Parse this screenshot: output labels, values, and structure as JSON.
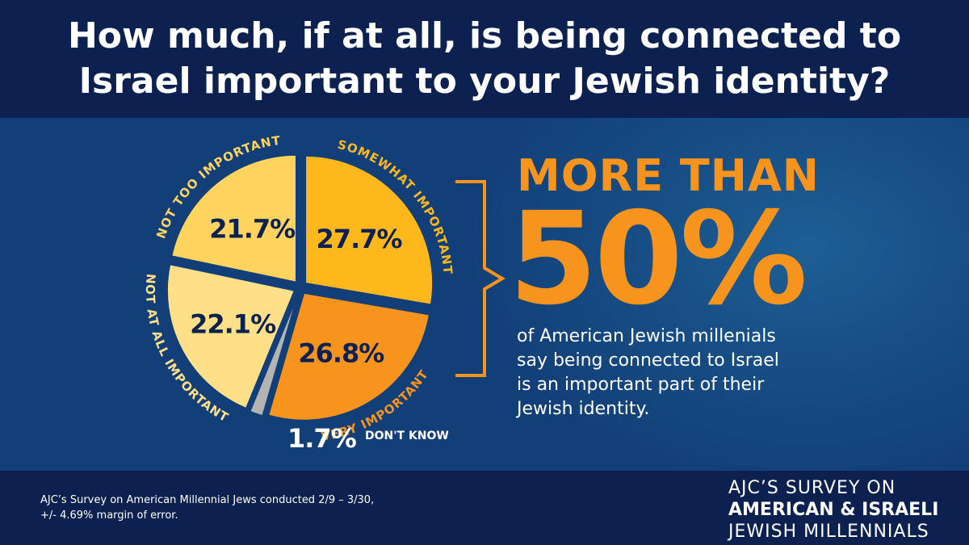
{
  "header": {
    "title_line1": "How much, if at all, is being connected to",
    "title_line2": "Israel important to your Jewish identity?"
  },
  "chart_data": {
    "type": "pie",
    "title": "How much, if at all, is being connected to Israel important to your Jewish identity?",
    "slices": [
      {
        "label": "SOMEWHAT IMPORTANT",
        "value": 27.7,
        "value_label": "27.7%",
        "color": "#ffb81c"
      },
      {
        "label": "VERY IMPORTANT",
        "value": 26.8,
        "value_label": "26.8%",
        "color": "#f7941d"
      },
      {
        "label": "DON'T KNOW",
        "value": 1.7,
        "value_label": "1.7%",
        "color": "#b3b3b3"
      },
      {
        "label": "NOT AT ALL IMPORTANT",
        "value": 22.1,
        "value_label": "22.1%",
        "color": "#ffe089"
      },
      {
        "label": "NOT TOO IMPORTANT",
        "value": 21.7,
        "value_label": "21.7%",
        "color": "#ffd45e"
      }
    ],
    "value_color": "#0d2150"
  },
  "callout": {
    "headline": "MORE THAN",
    "big_value": "50%",
    "body_lines": [
      "of American Jewish millenials",
      "say being connected to Israel",
      "is an important part of their",
      "Jewish identity."
    ],
    "color": "#f7941d"
  },
  "footer": {
    "source_lines": [
      "AJC’s Survey on American Millennial Jews conducted 2/9 – 3/30,",
      "+/- 4.69% margin of error."
    ],
    "brand_line1": "AJC’S SURVEY ON",
    "brand_line2": "AMERICAN & ISRAELI",
    "brand_line3": "JEWISH MILLENNIALS"
  }
}
